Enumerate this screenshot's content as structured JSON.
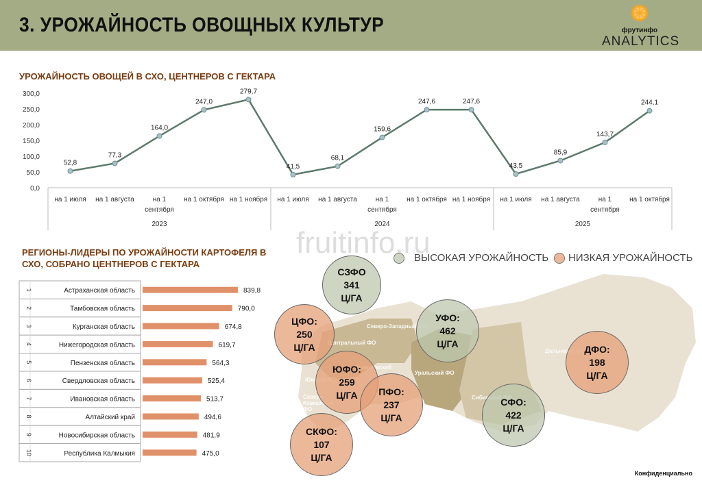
{
  "header": {
    "title": "3. УРОЖАЙНОСТЬ ОВОЩНЫХ КУЛЬТУР",
    "logo_brand": "фрутинфо",
    "logo_sub": "ANALYTICS"
  },
  "colors": {
    "header_bg": "#a4ac85",
    "line": "#5b7a6a",
    "bar": "#e0916a",
    "high": "#bcc8ad",
    "low": "#e6a078"
  },
  "chart_data": [
    {
      "type": "line",
      "title": "УРОЖАЙНОСТЬ ОВОЩЕЙ В СХО, ЦЕНТНЕРОВ С ГЕКТАРА",
      "yticks": [
        "300,0",
        "250,0",
        "200,0",
        "150,0",
        "100,0",
        "50,0",
        "0,0"
      ],
      "ylim": [
        0,
        300
      ],
      "categories": [
        "на 1 июля",
        "на 1 августа",
        "на 1 сентября",
        "на 1 октября",
        "на 1 ноября",
        "на 1 июля",
        "на 1 августа",
        "на 1 сентября",
        "на 1 октября",
        "на 1 ноября",
        "на 1 июля",
        "на 1 августа",
        "на 1 сентября",
        "на 1 октября"
      ],
      "groups": [
        {
          "label": "2023",
          "count": 5
        },
        {
          "label": "2024",
          "count": 5
        },
        {
          "label": "2025",
          "count": 4
        }
      ],
      "values": [
        52.8,
        77.3,
        164.0,
        247.0,
        279.7,
        41.5,
        68.1,
        159.6,
        247.6,
        247.6,
        43.5,
        85.9,
        143.7,
        244.1
      ],
      "labels": [
        "52,8",
        "77,3",
        "164,0",
        "247,0",
        "279,7",
        "41,5",
        "68,1",
        "159,6",
        "247,6",
        "247,6",
        "43,5",
        "85,9",
        "143,7",
        "244,1"
      ]
    },
    {
      "type": "bar",
      "title": "РЕГИОНЫ-ЛИДЕРЫ ПО УРОЖАЙНОСТИ КАРТОФЕЛЯ В СХО, СОБРАНО ЦЕНТНЕРОВ С ГЕКТАРА",
      "ranks": [
        "1",
        "2",
        "3",
        "4",
        "5",
        "6",
        "7",
        "8",
        "9",
        "10"
      ],
      "categories": [
        "Астраханская область",
        "Тамбовская область",
        "Курганская область",
        "Нижегородская область",
        "Пензенская область",
        "Свердловская область",
        "Ивановская область",
        "Алтайский край",
        "Новосибирская область",
        "Республика Калмыкия"
      ],
      "values": [
        839.8,
        790.0,
        674.8,
        619.7,
        564.3,
        525.4,
        513.7,
        494.6,
        481.9,
        475.0
      ],
      "labels": [
        "839,8",
        "790,0",
        "674,8",
        "619,7",
        "564,3",
        "525,4",
        "513,7",
        "494,6",
        "481,9",
        "475,0"
      ]
    }
  ],
  "map": {
    "legend_high": "ВЫСОКАЯ УРОЖАЙНОСТЬ",
    "legend_low": "НИЗКАЯ УРОЖАЙНОСТЬ",
    "districts": [
      {
        "name": "СЗФО",
        "value": "341",
        "unit": "Ц/ГА",
        "level": "high"
      },
      {
        "name": "ЦФО:",
        "value": "250",
        "unit": "Ц/ГА",
        "level": "low"
      },
      {
        "name": "УФО:",
        "value": "462",
        "unit": "Ц/ГА",
        "level": "high"
      },
      {
        "name": "ЮФО:",
        "value": "259",
        "unit": "Ц/ГА",
        "level": "low"
      },
      {
        "name": "ПФО:",
        "value": "237",
        "unit": "Ц/ГА",
        "level": "low"
      },
      {
        "name": "СКФО:",
        "value": "107",
        "unit": "Ц/ГА",
        "level": "low"
      },
      {
        "name": "СФО:",
        "value": "422",
        "unit": "Ц/ГА",
        "level": "high"
      },
      {
        "name": "ДФО:",
        "value": "198",
        "unit": "Ц/ГА",
        "level": "low"
      }
    ],
    "map_labels": [
      "Северо-Западный ФО",
      "Центральный ФО",
      "Приволжский",
      "Южный ФО",
      "Северо-Кавказский ФО",
      "Уральский ФО",
      "Сибирский ФО",
      "Дальневосточный"
    ]
  },
  "watermark": "fruitinfo.ru",
  "footer": "Конфиденциально"
}
